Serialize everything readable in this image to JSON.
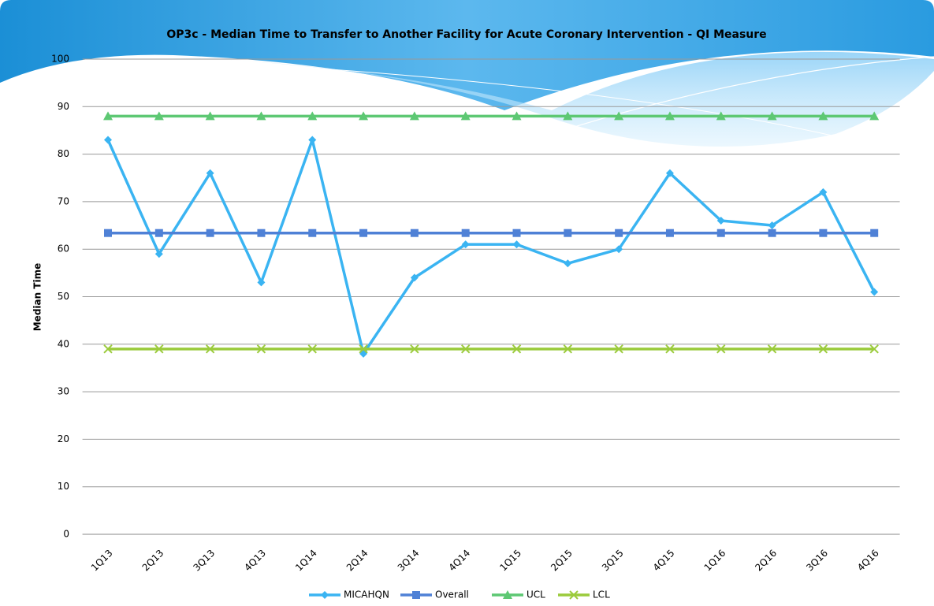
{
  "chart_data": {
    "type": "line",
    "title": "OP3c - Median Time to Transfer to Another Facility for Acute Coronary Intervention - QI Measure",
    "y_label": "Median Time",
    "categories": [
      "1Q13",
      "2Q13",
      "3Q13",
      "4Q13",
      "1Q14",
      "2Q14",
      "3Q14",
      "4Q14",
      "1Q15",
      "2Q15",
      "3Q15",
      "4Q15",
      "1Q16",
      "2Q16",
      "3Q16",
      "4Q16"
    ],
    "series": [
      {
        "name": "MICAHQN",
        "color": "#3ab4f2",
        "marker": "diamond",
        "values": [
          83,
          59,
          76,
          53,
          83,
          38,
          54,
          61,
          61,
          57,
          60,
          76,
          66,
          65,
          72,
          51
        ]
      },
      {
        "name": "Overall",
        "color": "#4f81d6",
        "marker": "square",
        "values": [
          63.4,
          63.4,
          63.4,
          63.4,
          63.4,
          63.4,
          63.4,
          63.4,
          63.4,
          63.4,
          63.4,
          63.4,
          63.4,
          63.4,
          63.4,
          63.4
        ]
      },
      {
        "name": "UCL",
        "color": "#5dc873",
        "marker": "triangle",
        "values": [
          88,
          88,
          88,
          88,
          88,
          88,
          88,
          88,
          88,
          88,
          88,
          88,
          88,
          88,
          88,
          88
        ]
      },
      {
        "name": "LCL",
        "color": "#9bcb3c",
        "marker": "x",
        "values": [
          39,
          39,
          39,
          39,
          39,
          39,
          39,
          39,
          39,
          39,
          39,
          39,
          39,
          39,
          39,
          39
        ]
      }
    ],
    "ylim": [
      0,
      100
    ],
    "yticks": [
      0,
      10,
      20,
      30,
      40,
      50,
      60,
      70,
      80,
      90,
      100
    ],
    "grid": true,
    "legend": "bottom"
  }
}
